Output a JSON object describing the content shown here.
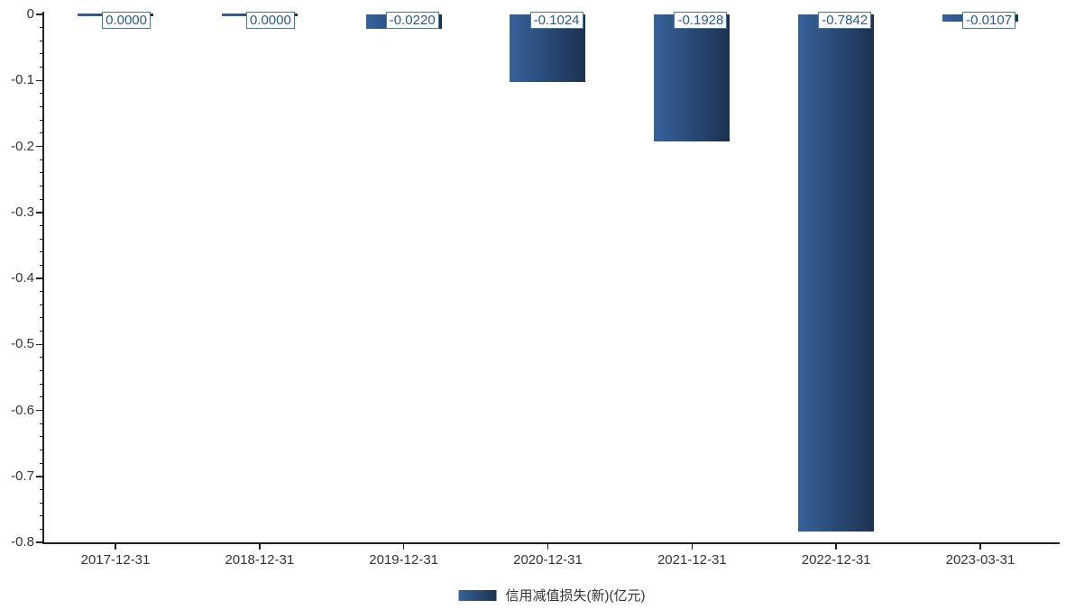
{
  "chart_data": {
    "type": "bar",
    "title": "",
    "categories": [
      "2017-12-31",
      "2018-12-31",
      "2019-12-31",
      "2020-12-31",
      "2021-12-31",
      "2022-12-31",
      "2023-03-31"
    ],
    "series": [
      {
        "name": "信用减值损失(新)(亿元)",
        "values": [
          0.0,
          0.0,
          -0.022,
          -0.1024,
          -0.1928,
          -0.7842,
          -0.0107
        ],
        "value_labels": [
          "0.0000",
          "0.0000",
          "-0.0220",
          "-0.1024",
          "-0.1928",
          "-0.7842",
          "-0.0107"
        ]
      }
    ],
    "xlabel": "",
    "ylabel": "",
    "ylim": [
      -0.8,
      0
    ],
    "yticks": [
      0,
      -0.1,
      -0.2,
      -0.3,
      -0.4,
      -0.5,
      -0.6,
      -0.7,
      -0.8
    ],
    "ytick_labels": [
      "0",
      "-0.1",
      "-0.2",
      "-0.3",
      "-0.4",
      "-0.5",
      "-0.6",
      "-0.7",
      "-0.8"
    ],
    "minor_tick_step": 0.02,
    "grid": false,
    "legend_position": "bottom",
    "colors": {
      "bar_gradient_left": "#36639b",
      "bar_gradient_right": "#1c3150",
      "label_border": "#4576ad",
      "label_text": "#2a5893",
      "label_bg": "#ffffff",
      "axis": "#222222",
      "tick_text": "#333333"
    }
  },
  "legend": {
    "label": "信用减值损失(新)(亿元)"
  }
}
